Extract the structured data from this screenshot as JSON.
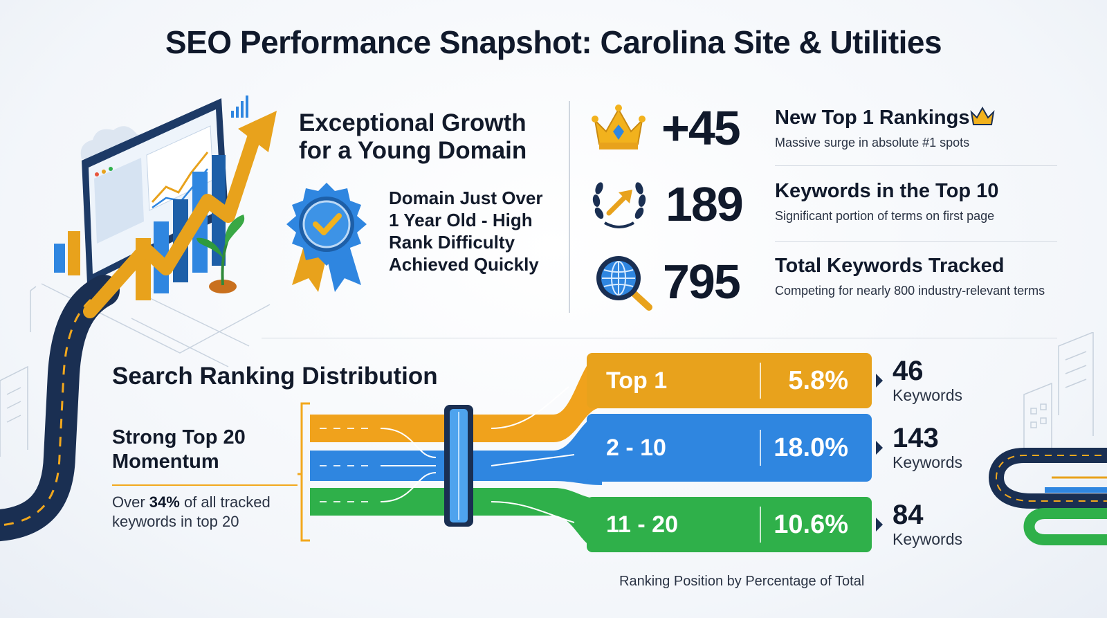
{
  "title": "SEO Performance Snapshot: Carolina Site & Utilities",
  "growth": {
    "title_line1": "Exceptional Growth",
    "title_line2": "for a Young Domain",
    "note_line1": "Domain Just Over",
    "note_line2": "1 Year Old - High",
    "note_line3": "Rank Difficulty",
    "note_line4": "Achieved Quickly"
  },
  "stats": [
    {
      "value": "+45",
      "title": "New Top 1 Rankings",
      "desc": "Massive surge in absolute #1 spots",
      "icon": "crown-icon"
    },
    {
      "value": "189",
      "title": "Keywords in the Top 10",
      "desc": "Significant portion of terms on first page",
      "icon": "laurel-arrow-icon"
    },
    {
      "value": "795",
      "title": "Total Keywords Tracked",
      "desc": "Competing for nearly 800 industry-relevant terms",
      "icon": "globe-search-icon"
    }
  ],
  "distribution": {
    "title": "Search Ranking Distribution",
    "momentum_title_line1": "Strong Top 20",
    "momentum_title_line2": "Momentum",
    "momentum_prefix": "Over ",
    "momentum_highlight": "34%",
    "momentum_suffix_line1": " of all tracked",
    "momentum_suffix_line2": "keywords in top 20",
    "caption": "Ranking Position by Percentage of Total"
  },
  "colors": {
    "top1": "#e8a21c",
    "top10": "#2f86e0",
    "top20": "#2fb04a",
    "navy": "#1a2f52"
  },
  "chart_data": {
    "type": "bar",
    "title": "Search Ranking Distribution",
    "xlabel": "Ranking Position by Percentage of Total",
    "ylabel": "",
    "categories": [
      "Top 1",
      "2 - 10",
      "11 - 20"
    ],
    "series": [
      {
        "name": "Percentage of Total",
        "values": [
          5.8,
          18.0,
          10.6
        ],
        "labels": [
          "5.8%",
          "18.0%",
          "10.6%"
        ]
      },
      {
        "name": "Keywords",
        "values": [
          46,
          143,
          84
        ]
      }
    ],
    "count_unit": "Keywords"
  }
}
